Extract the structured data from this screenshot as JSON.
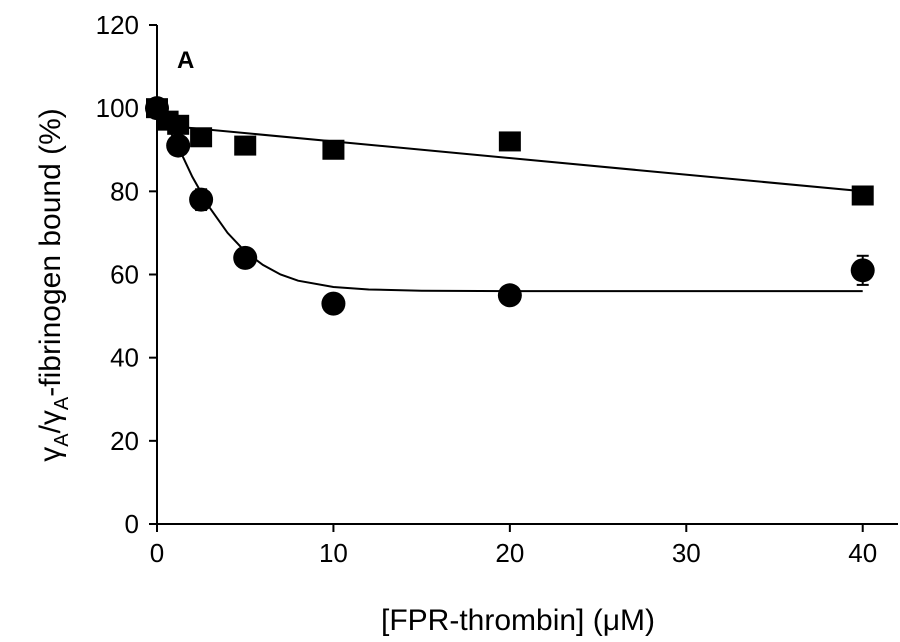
{
  "chart_data": {
    "type": "scatter",
    "panel_label": "A",
    "xlabel": "[FPR-thrombin] (μM)",
    "ylabel": "γA/γA-fibrinogen bound (%)",
    "ylabel_parts": {
      "gamma1": "γ",
      "sub1": "A",
      "slash": "/",
      "gamma2": "γ",
      "sub2": "A",
      "rest": "-fibrinogen bound (%)"
    },
    "xlim": [
      0,
      42
    ],
    "ylim": [
      0,
      120
    ],
    "x_ticks": [
      0,
      10,
      20,
      30,
      40
    ],
    "y_ticks": [
      0,
      20,
      40,
      60,
      80,
      100,
      120
    ],
    "grid": false,
    "series": [
      {
        "marker": "square",
        "x": [
          0,
          0.6,
          1.2,
          2.5,
          5,
          10,
          20,
          40
        ],
        "y": [
          100,
          97,
          96,
          93,
          91,
          90,
          92,
          79
        ],
        "error": [
          2,
          1.5,
          1.5,
          1.5,
          1.5,
          1.5,
          1.5,
          1.5
        ],
        "fit": {
          "kind": "linear",
          "x": [
            0,
            40
          ],
          "y": [
            96,
            80
          ]
        }
      },
      {
        "marker": "circle",
        "x": [
          0,
          1.2,
          2.5,
          5,
          10,
          20,
          40
        ],
        "y": [
          100,
          91,
          78,
          64,
          53,
          55,
          61
        ],
        "error": [
          2,
          1.5,
          2.5,
          1.5,
          1.5,
          1.5,
          3.5
        ],
        "fit": {
          "kind": "curve",
          "x": [
            0,
            0.5,
            1,
            1.5,
            2,
            3,
            4,
            5,
            6,
            7,
            8,
            10,
            12,
            15,
            20,
            25,
            30,
            35,
            40
          ],
          "y": [
            100,
            96.4,
            92.3,
            88.0,
            83.5,
            76.0,
            70.0,
            65.5,
            62.3,
            60.0,
            58.5,
            57.0,
            56.4,
            56.1,
            56.0,
            56.0,
            56.0,
            56.0,
            56.0
          ]
        }
      }
    ]
  }
}
